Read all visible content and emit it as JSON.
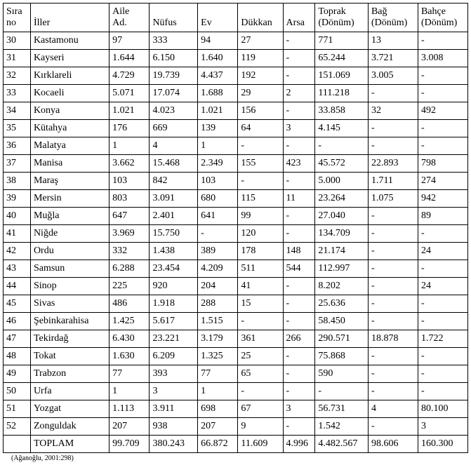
{
  "table": {
    "columns": [
      {
        "line1": "Sıra",
        "line2": "no"
      },
      {
        "line1": "",
        "line2": "İller"
      },
      {
        "line1": "Aile",
        "line2": "Ad."
      },
      {
        "line1": "",
        "line2": "Nüfus"
      },
      {
        "line1": "",
        "line2": "Ev"
      },
      {
        "line1": "",
        "line2": "Dükkan"
      },
      {
        "line1": "",
        "line2": "Arsa"
      },
      {
        "line1": "Toprak",
        "line2": "(Dönüm)"
      },
      {
        "line1": "Bağ",
        "line2": "(Dönüm)"
      },
      {
        "line1": "Bahçe",
        "line2": "(Dönüm)"
      }
    ],
    "rows": [
      [
        "30",
        "Kastamonu",
        "97",
        "333",
        "94",
        "27",
        "-",
        "771",
        "13",
        "-"
      ],
      [
        "31",
        "Kayseri",
        "1.644",
        "6.150",
        "1.640",
        "119",
        "-",
        "65.244",
        "3.721",
        "3.008"
      ],
      [
        "32",
        "Kırklareli",
        "4.729",
        "19.739",
        "4.437",
        "192",
        "-",
        "151.069",
        "3.005",
        "-"
      ],
      [
        "33",
        "Kocaeli",
        "5.071",
        "17.074",
        "1.688",
        "29",
        "2",
        "111.218",
        "-",
        "-"
      ],
      [
        "34",
        "Konya",
        "1.021",
        "4.023",
        "1.021",
        "156",
        "-",
        "33.858",
        "32",
        "492"
      ],
      [
        "35",
        "Kütahya",
        "176",
        "669",
        "139",
        "64",
        "3",
        "4.145",
        "-",
        "-"
      ],
      [
        "36",
        "Malatya",
        "1",
        "4",
        "1",
        "-",
        "-",
        "-",
        "-",
        "-"
      ],
      [
        "37",
        "Manisa",
        "3.662",
        "15.468",
        "2.349",
        "155",
        "423",
        "45.572",
        "22.893",
        "798"
      ],
      [
        "38",
        "Maraş",
        "103",
        "842",
        "103",
        "-",
        "-",
        "5.000",
        "1.711",
        "274"
      ],
      [
        "39",
        "Mersin",
        "803",
        "3.091",
        "680",
        "115",
        "11",
        "23.264",
        "1.075",
        "942"
      ],
      [
        "40",
        "Muğla",
        "647",
        "2.401",
        "641",
        "99",
        "-",
        "27.040",
        "-",
        "89"
      ],
      [
        "41",
        "Niğde",
        "3.969",
        "15.750",
        "-",
        "120",
        "-",
        "134.709",
        "-",
        "-"
      ],
      [
        "42",
        "Ordu",
        "332",
        "1.438",
        "389",
        "178",
        "148",
        "21.174",
        "-",
        "24"
      ],
      [
        "43",
        "Samsun",
        "6.288",
        "23.454",
        "4.209",
        "511",
        "544",
        "112.997",
        "-",
        "-"
      ],
      [
        "44",
        "Sinop",
        "225",
        "920",
        "204",
        "41",
        "-",
        "8.202",
        "-",
        "24"
      ],
      [
        "45",
        "Sivas",
        "486",
        "1.918",
        "288",
        "15",
        "-",
        "25.636",
        "-",
        "-"
      ],
      [
        "46",
        "Şebinkarahisa",
        "1.425",
        "5.617",
        "1.515",
        "-",
        "-",
        "58.450",
        "-",
        "-"
      ],
      [
        "47",
        "Tekirdağ",
        "6.430",
        "23.221",
        "3.179",
        "361",
        "266",
        "290.571",
        "18.878",
        "1.722"
      ],
      [
        "48",
        "Tokat",
        "1.630",
        "6.209",
        "1.325",
        "25",
        "-",
        "75.868",
        "-",
        "-"
      ],
      [
        "49",
        "Trabzon",
        "77",
        "393",
        "77",
        "65",
        "-",
        "590",
        "-",
        "-"
      ],
      [
        "50",
        "Urfa",
        "1",
        "3",
        "1",
        "-",
        "-",
        "-",
        "-",
        "-"
      ],
      [
        "51",
        "Yozgat",
        "1.113",
        "3.911",
        "698",
        "67",
        "3",
        "56.731",
        "4",
        "80.100"
      ],
      [
        "52",
        "Zonguldak",
        "207",
        "938",
        "207",
        "9",
        "-",
        "1.542",
        "-",
        "3"
      ],
      [
        "",
        "TOPLAM",
        "99.709",
        "380.243",
        "66.872",
        "11.609",
        "4.996",
        "4.482.567",
        "98.606",
        "160.300"
      ]
    ]
  },
  "source": "(Ağanoğlu, 2001:298)"
}
